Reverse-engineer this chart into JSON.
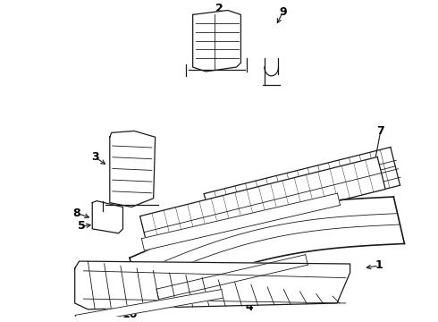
{
  "background_color": "#ffffff",
  "line_color": "#1a1a1a",
  "label_color": "#000000",
  "figsize": [
    4.9,
    3.6
  ],
  "dpi": 100
}
